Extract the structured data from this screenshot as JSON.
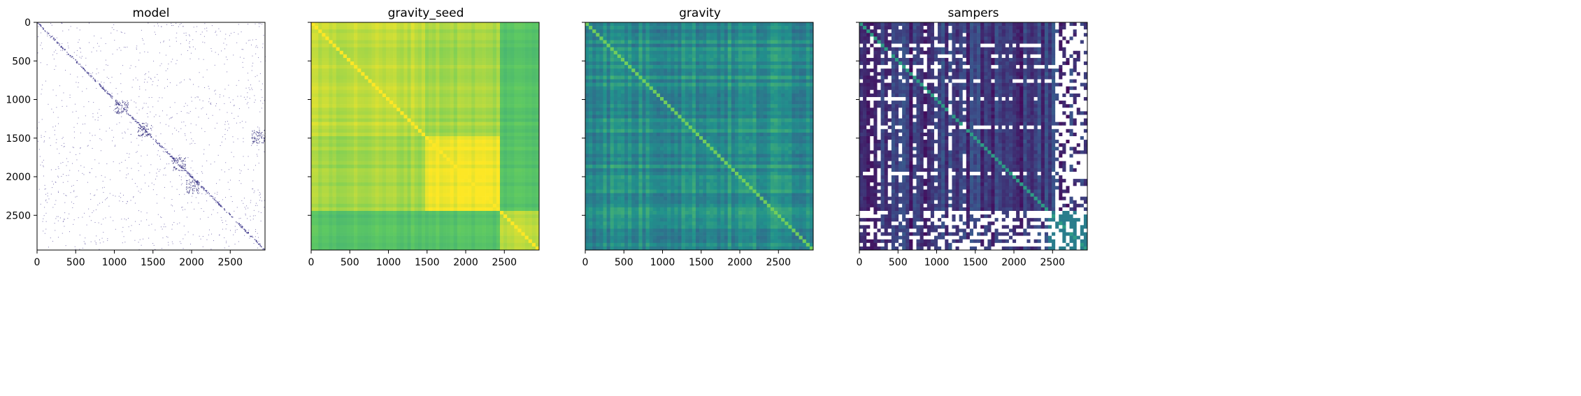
{
  "chart_data": [
    {
      "type": "heatmap",
      "title": "model",
      "xlabel": "",
      "ylabel": "",
      "xlim": [
        0,
        2950
      ],
      "ylim": [
        2950,
        0
      ],
      "xticks": [
        0,
        500,
        1000,
        1500,
        2000,
        2500
      ],
      "yticks": [
        0,
        500,
        1000,
        1500,
        2000,
        2500
      ],
      "show_y_tick_labels": true,
      "colormap": "Purples-sparse",
      "description_values": "sparse matrix: mostly empty with a dark diagonal and scattered dots"
    },
    {
      "type": "heatmap",
      "title": "gravity_seed",
      "xlabel": "",
      "ylabel": "",
      "xlim": [
        0,
        2950
      ],
      "ylim": [
        2950,
        0
      ],
      "xticks": [
        0,
        500,
        1000,
        1500,
        2000,
        2500
      ],
      "yticks": [
        0,
        500,
        1000,
        1500,
        2000,
        2500
      ],
      "show_y_tick_labels": false,
      "colormap": "viridis-high",
      "blocks": [
        [
          0,
          1480
        ],
        [
          1480,
          2450
        ],
        [
          2450,
          2950
        ]
      ]
    },
    {
      "type": "heatmap",
      "title": "gravity",
      "xlabel": "",
      "ylabel": "",
      "xlim": [
        0,
        2950
      ],
      "ylim": [
        2950,
        0
      ],
      "xticks": [
        0,
        500,
        1000,
        1500,
        2000,
        2500
      ],
      "yticks": [
        0,
        500,
        1000,
        1500,
        2000,
        2500
      ],
      "show_y_tick_labels": false,
      "colormap": "viridis-mid"
    },
    {
      "type": "heatmap",
      "title": "sampers",
      "xlabel": "",
      "ylabel": "",
      "xlim": [
        0,
        2950
      ],
      "ylim": [
        2950,
        0
      ],
      "xticks": [
        0,
        500,
        1000,
        1500,
        2000,
        2500
      ],
      "yticks": [
        0,
        500,
        1000,
        1500,
        2000,
        2500
      ],
      "show_y_tick_labels": false,
      "colormap": "viridis-low-with-gaps"
    }
  ],
  "colors": {
    "axes": "#000000",
    "background": "#ffffff",
    "model_diag": "#3f3a8c",
    "viridis_dark": "#440154",
    "viridis_blue": "#3b528b",
    "viridis_teal": "#21918c",
    "viridis_green": "#5ec962",
    "viridis_yellow": "#fde725"
  }
}
